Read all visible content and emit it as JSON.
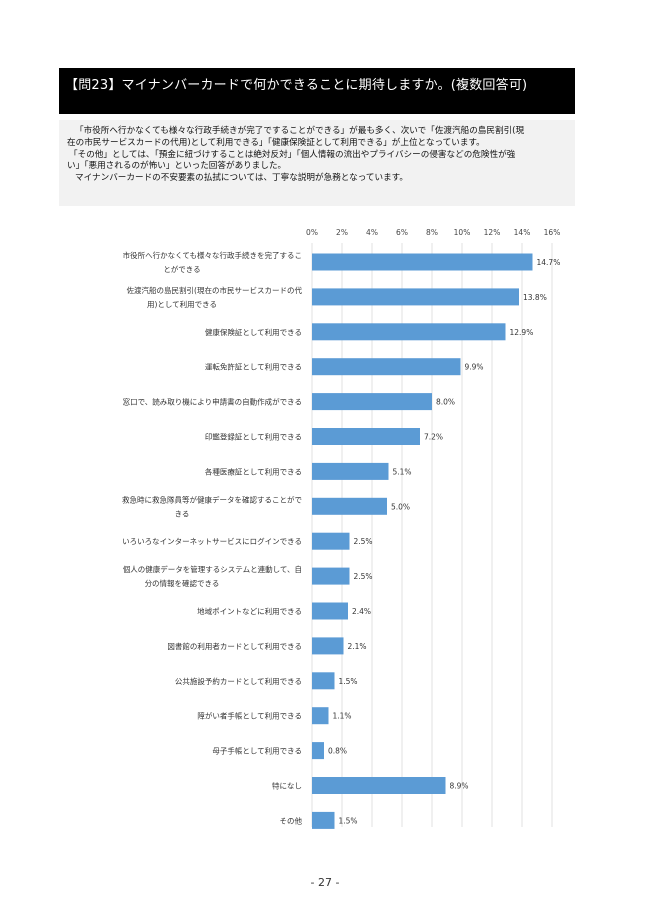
{
  "question": "【問23】マイナンバーカードで何かできることに期待しますか。(複数回答可)",
  "summary": [
    "「市役所へ行かなくても様々な行政手続きが完了ですることができる」が最も多く、次いで「佐渡汽船の島民割引(現",
    "在の市民サービスカードの代用)として利用できる」「健康保険証として利用できる」が上位となっています。",
    "「その他」としては、「預金に紐づけすることは絶対反対」「個人情報の流出やプライバシーの侵害などの危険性が強",
    "い」「悪用されるのが怖い」といった回答がありました。",
    "マイナンバーカードの不安要素の払拭については、丁寧な説明が急務となっています。"
  ],
  "page_number": "- 27 -",
  "chart_data": {
    "type": "bar",
    "orientation": "horizontal",
    "title": "",
    "xlim": [
      0,
      16
    ],
    "ticks": [
      {
        "value": 0,
        "label": "0%"
      },
      {
        "value": 2,
        "label": "2%"
      },
      {
        "value": 4,
        "label": "4%"
      },
      {
        "value": 6,
        "label": "6%"
      },
      {
        "value": 8,
        "label": "8%"
      },
      {
        "value": 10,
        "label": "10%"
      },
      {
        "value": 12,
        "label": "12%"
      },
      {
        "value": 14,
        "label": "14%"
      },
      {
        "value": 16,
        "label": "16%"
      }
    ],
    "categories": [
      [
        "市役所へ行かなくても様々な行政手続きを完了するこ",
        "とができる"
      ],
      [
        "佐渡汽船の島民割引(現在の市民サービスカードの代",
        "用)として利用できる"
      ],
      [
        "健康保険証として利用できる"
      ],
      [
        "運転免許証として利用できる"
      ],
      [
        "窓口で、読み取り機により申請書の自動作成ができる"
      ],
      [
        "印鑑登録証として利用できる"
      ],
      [
        "各種医療証として利用できる"
      ],
      [
        "救急時に救急隊員等が健康データを確認することがで",
        "きる"
      ],
      [
        "いろいろなインターネットサービスにログインできる"
      ],
      [
        "個人の健康データを管理するシステムと連動して、自",
        "分の情報を確認できる"
      ],
      [
        "地域ポイントなどに利用できる"
      ],
      [
        "図書館の利用者カードとして利用できる"
      ],
      [
        "公共施設予約カードとして利用できる"
      ],
      [
        "障がい者手帳として利用できる"
      ],
      [
        "母子手帳として利用できる"
      ],
      [
        "特になし"
      ],
      [
        "その他"
      ]
    ],
    "values": [
      14.7,
      13.8,
      12.9,
      9.9,
      8.0,
      7.2,
      5.1,
      5.0,
      2.5,
      2.5,
      2.4,
      2.1,
      1.5,
      1.1,
      0.8,
      8.9,
      1.5
    ],
    "value_labels": [
      "14.7%",
      "13.8%",
      "12.9%",
      "9.9%",
      "8.0%",
      "7.2%",
      "5.1%",
      "5.0%",
      "2.5%",
      "2.5%",
      "2.4%",
      "2.1%",
      "1.5%",
      "1.1%",
      "0.8%",
      "8.9%",
      "1.5%"
    ],
    "bar_color": "#5b9bd5",
    "grid_color": "#d9d9d9"
  }
}
